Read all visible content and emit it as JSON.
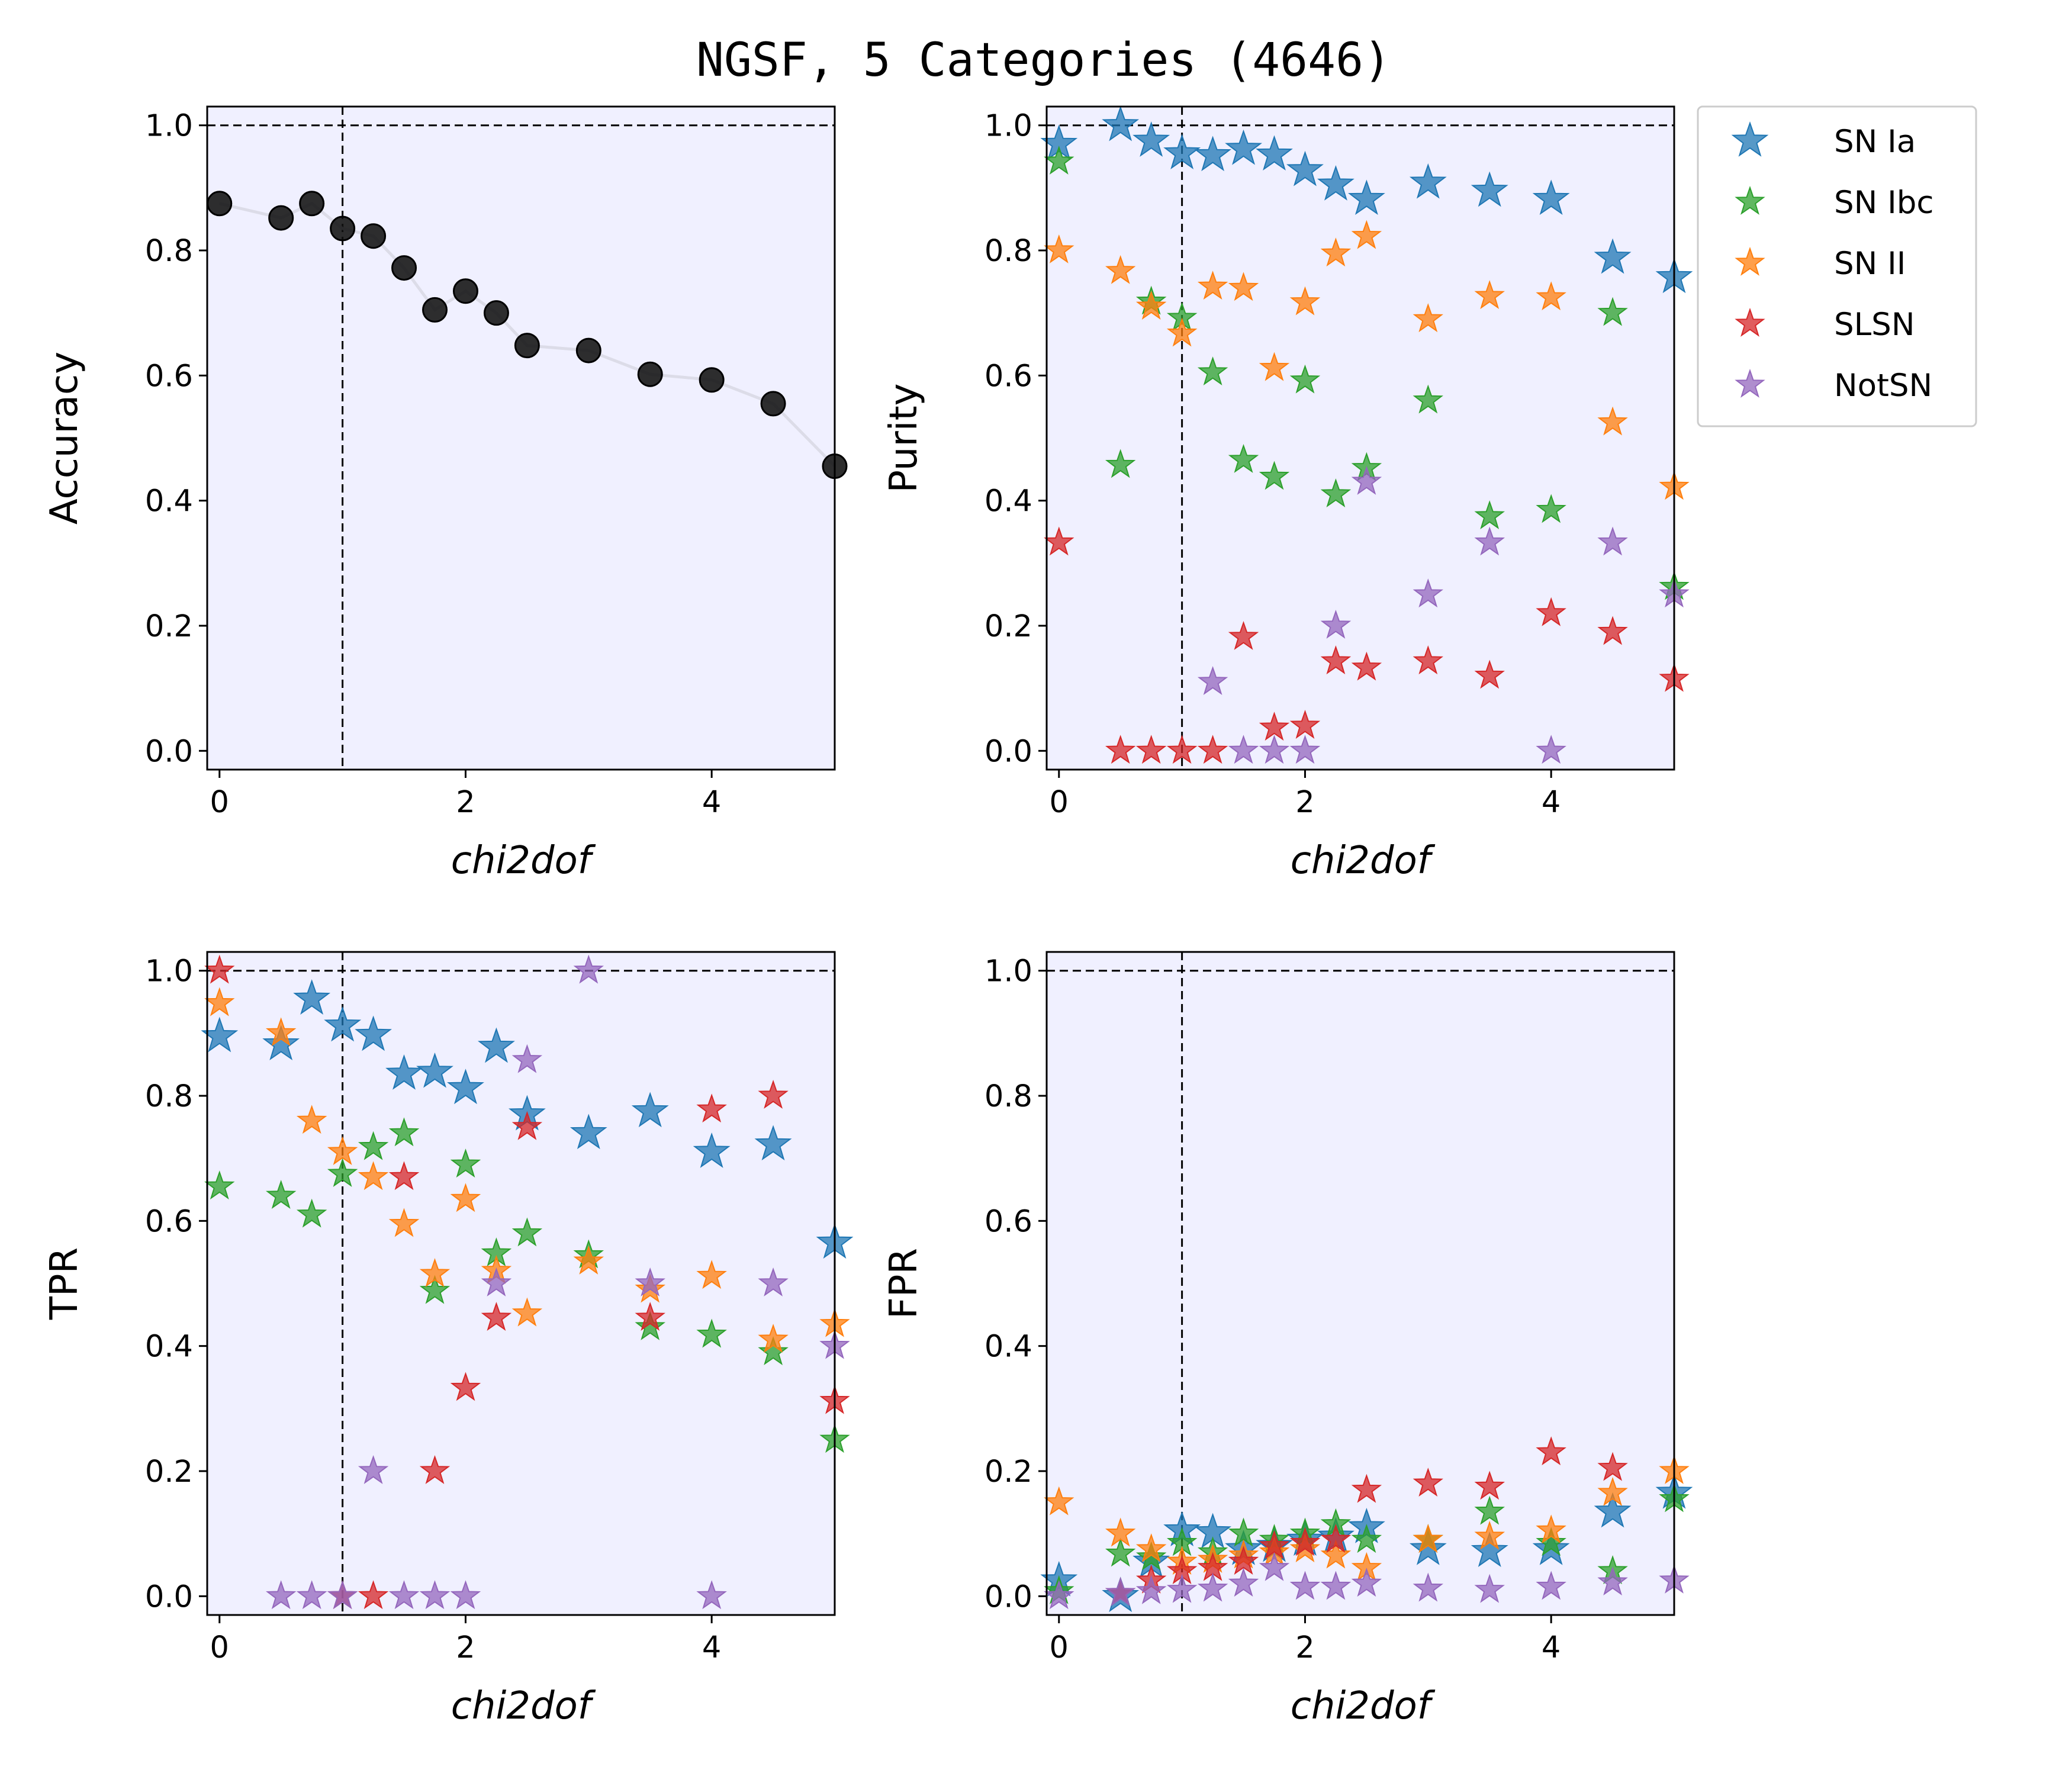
{
  "figure": {
    "title": "NGSF, 5 Categories (4646)"
  },
  "colors": {
    "SN Ia": "#1f77b4",
    "SN Ibc": "#2ca02c",
    "SN II": "#ff7f0e",
    "SLSN": "#d62728",
    "NotSN": "#9467bd",
    "accuracy": "#111111",
    "axes_background": "#f0f0ff"
  },
  "legend": {
    "placement": "outside-right",
    "entries": [
      "SN Ia",
      "SN Ibc",
      "SN II",
      "SLSN",
      "NotSN"
    ]
  },
  "chart_data": [
    {
      "id": "accuracy",
      "type": "line",
      "marker": "circle",
      "xlabel": "chi2dof",
      "ylabel": "Accuracy",
      "xlim": [
        -0.1,
        5.0
      ],
      "ylim": [
        -0.03,
        1.03
      ],
      "xticks": [
        0,
        2,
        4
      ],
      "yticks": [
        0.0,
        0.2,
        0.4,
        0.6,
        0.8,
        1.0
      ],
      "reference_lines": {
        "x": 1,
        "y": 1.0,
        "style": "dashed"
      },
      "grid": false,
      "series": [
        {
          "x": [
            0,
            0.5,
            0.75,
            1,
            1.25,
            1.5,
            1.75,
            2,
            2.25,
            2.5,
            3,
            3.5,
            4,
            4.5,
            5
          ],
          "values": [
            0.875,
            0.852,
            0.875,
            0.835,
            0.823,
            0.772,
            0.705,
            0.735,
            0.7,
            0.648,
            0.64,
            0.602,
            0.593,
            0.555,
            0.455
          ]
        }
      ]
    },
    {
      "id": "purity",
      "type": "scatter",
      "marker": "star",
      "xlabel": "chi2dof",
      "ylabel": "Purity",
      "xlim": [
        -0.1,
        5.0
      ],
      "ylim": [
        -0.03,
        1.03
      ],
      "xticks": [
        0,
        2,
        4
      ],
      "yticks": [
        0.0,
        0.2,
        0.4,
        0.6,
        0.8,
        1.0
      ],
      "reference_lines": {
        "x": 1,
        "y": 1.0,
        "style": "dashed"
      },
      "grid": false,
      "series": [
        {
          "name": "SN Ia",
          "x": [
            0,
            0.5,
            0.75,
            1,
            1.25,
            1.5,
            1.75,
            2,
            2.25,
            2.5,
            3,
            3.5,
            4,
            4.5,
            5
          ],
          "values": [
            0.97,
            1.0,
            0.975,
            0.955,
            0.952,
            0.962,
            0.953,
            0.928,
            0.905,
            0.882,
            0.908,
            0.895,
            0.882,
            0.788,
            0.757
          ]
        },
        {
          "name": "SN Ibc",
          "x": [
            0,
            0.5,
            0.75,
            1,
            1.25,
            1.5,
            1.75,
            2,
            2.25,
            2.5,
            3,
            3.5,
            4,
            4.5,
            5
          ],
          "values": [
            0.942,
            0.457,
            0.718,
            0.692,
            0.605,
            0.465,
            0.438,
            0.592,
            0.41,
            0.452,
            0.56,
            0.375,
            0.385,
            0.7,
            0.262
          ]
        },
        {
          "name": "SN II",
          "x": [
            0,
            0.5,
            0.75,
            1,
            1.25,
            1.5,
            1.75,
            2,
            2.25,
            2.5,
            3,
            3.5,
            4,
            4.5,
            5
          ],
          "values": [
            0.8,
            0.767,
            0.71,
            0.667,
            0.742,
            0.74,
            0.612,
            0.717,
            0.795,
            0.823,
            0.69,
            0.727,
            0.725,
            0.525,
            0.422
          ]
        },
        {
          "name": "SLSN",
          "x": [
            0,
            0.5,
            0.75,
            1,
            1.25,
            1.5,
            1.75,
            2,
            2.25,
            2.5,
            3,
            3.5,
            4,
            4.5,
            5
          ],
          "values": [
            0.333,
            0.0,
            0.0,
            0.0,
            0.0,
            0.182,
            0.037,
            0.04,
            0.143,
            0.133,
            0.143,
            0.12,
            0.22,
            0.19,
            0.115
          ]
        },
        {
          "name": "NotSN",
          "x": [
            1.25,
            1.5,
            1.75,
            2,
            2.25,
            2.5,
            3,
            3.5,
            4,
            4.5,
            5
          ],
          "values": [
            0.11,
            0.0,
            0.0,
            0.0,
            0.2,
            0.43,
            0.25,
            0.333,
            0.0,
            0.333,
            0.25
          ]
        }
      ]
    },
    {
      "id": "tpr",
      "type": "scatter",
      "marker": "star",
      "xlabel": "chi2dof",
      "ylabel": "TPR",
      "xlim": [
        -0.1,
        5.0
      ],
      "ylim": [
        -0.03,
        1.03
      ],
      "xticks": [
        0,
        2,
        4
      ],
      "yticks": [
        0.0,
        0.2,
        0.4,
        0.6,
        0.8,
        1.0
      ],
      "reference_lines": {
        "x": 1,
        "y": 1.0,
        "style": "dashed"
      },
      "grid": false,
      "series": [
        {
          "name": "SN Ia",
          "x": [
            0,
            0.5,
            0.75,
            1,
            1.25,
            1.5,
            1.75,
            2,
            2.25,
            2.5,
            3,
            3.5,
            4,
            4.5,
            5
          ],
          "values": [
            0.895,
            0.882,
            0.955,
            0.912,
            0.897,
            0.835,
            0.838,
            0.812,
            0.878,
            0.77,
            0.74,
            0.775,
            0.71,
            0.722,
            0.565
          ]
        },
        {
          "name": "SN Ibc",
          "x": [
            0,
            0.5,
            0.75,
            1,
            1.25,
            1.5,
            1.75,
            2,
            2.25,
            2.5,
            3,
            3.5,
            4,
            4.5,
            5
          ],
          "values": [
            0.655,
            0.64,
            0.61,
            0.675,
            0.718,
            0.74,
            0.488,
            0.69,
            0.548,
            0.58,
            0.545,
            0.43,
            0.418,
            0.39,
            0.25
          ]
        },
        {
          "name": "SN II",
          "x": [
            0,
            0.5,
            0.75,
            1,
            1.25,
            1.5,
            1.75,
            2,
            2.25,
            2.5,
            3,
            3.5,
            4,
            4.5,
            5
          ],
          "values": [
            0.948,
            0.9,
            0.76,
            0.71,
            0.67,
            0.595,
            0.515,
            0.635,
            0.52,
            0.452,
            0.535,
            0.49,
            0.512,
            0.41,
            0.435
          ]
        },
        {
          "name": "SLSN",
          "x": [
            0,
            1,
            1.25,
            1.5,
            1.75,
            2,
            2.25,
            2.5,
            3.5,
            4,
            4.5,
            5
          ],
          "values": [
            1.0,
            0.0,
            0.0,
            0.67,
            0.2,
            0.333,
            0.445,
            0.75,
            0.445,
            0.778,
            0.8,
            0.312
          ]
        },
        {
          "name": "NotSN",
          "x": [
            0.5,
            0.75,
            1,
            1.25,
            1.5,
            1.75,
            2,
            2.25,
            2.5,
            3,
            3.5,
            4,
            4.5,
            5
          ],
          "values": [
            0.0,
            0.0,
            0.0,
            0.2,
            0.0,
            0.0,
            0.0,
            0.5,
            0.857,
            1.0,
            0.5,
            0.0,
            0.5,
            0.4
          ]
        }
      ]
    },
    {
      "id": "fpr",
      "type": "scatter",
      "marker": "star",
      "xlabel": "chi2dof",
      "ylabel": "FPR",
      "xlim": [
        -0.1,
        5.0
      ],
      "ylim": [
        -0.03,
        1.03
      ],
      "xticks": [
        0,
        2,
        4
      ],
      "yticks": [
        0.0,
        0.2,
        0.4,
        0.6,
        0.8,
        1.0
      ],
      "reference_lines": {
        "x": 1,
        "y": 1.0,
        "style": "dashed"
      },
      "grid": false,
      "series": [
        {
          "name": "SN Ia",
          "x": [
            0,
            0.5,
            0.75,
            1,
            1.25,
            1.5,
            1.75,
            2,
            2.25,
            2.5,
            3,
            3.5,
            4,
            4.5,
            5
          ],
          "values": [
            0.025,
            0.0,
            0.055,
            0.105,
            0.102,
            0.075,
            0.08,
            0.09,
            0.095,
            0.11,
            0.075,
            0.072,
            0.075,
            0.135,
            0.165
          ]
        },
        {
          "name": "SN Ibc",
          "x": [
            0,
            0.5,
            0.75,
            1,
            1.25,
            1.5,
            1.75,
            2,
            2.25,
            2.5,
            3,
            3.5,
            4,
            4.5,
            5
          ],
          "values": [
            0.008,
            0.068,
            0.062,
            0.085,
            0.07,
            0.1,
            0.09,
            0.1,
            0.115,
            0.09,
            0.09,
            0.135,
            0.085,
            0.04,
            0.155
          ]
        },
        {
          "name": "SN II",
          "x": [
            0,
            0.5,
            0.75,
            1,
            1.25,
            1.5,
            1.75,
            2,
            2.25,
            2.5,
            3,
            3.5,
            4,
            4.5,
            5
          ],
          "values": [
            0.15,
            0.1,
            0.075,
            0.055,
            0.058,
            0.065,
            0.07,
            0.075,
            0.065,
            0.045,
            0.09,
            0.095,
            0.105,
            0.165,
            0.2
          ]
        },
        {
          "name": "SLSN",
          "x": [
            0.5,
            0.75,
            1,
            1.25,
            1.5,
            1.75,
            2,
            2.25,
            2.5,
            3,
            3.5,
            4,
            4.5
          ],
          "values": [
            0.005,
            0.025,
            0.04,
            0.045,
            0.055,
            0.08,
            0.085,
            0.09,
            0.17,
            0.18,
            0.175,
            0.23,
            0.205
          ]
        },
        {
          "name": "NotSN",
          "x": [
            0,
            0.5,
            0.75,
            1,
            1.25,
            1.5,
            1.75,
            2,
            2.25,
            2.5,
            3,
            3.5,
            4,
            4.5,
            5
          ],
          "values": [
            0.0,
            0.005,
            0.008,
            0.01,
            0.012,
            0.02,
            0.045,
            0.015,
            0.015,
            0.02,
            0.012,
            0.01,
            0.015,
            0.022,
            0.025
          ]
        }
      ]
    }
  ]
}
